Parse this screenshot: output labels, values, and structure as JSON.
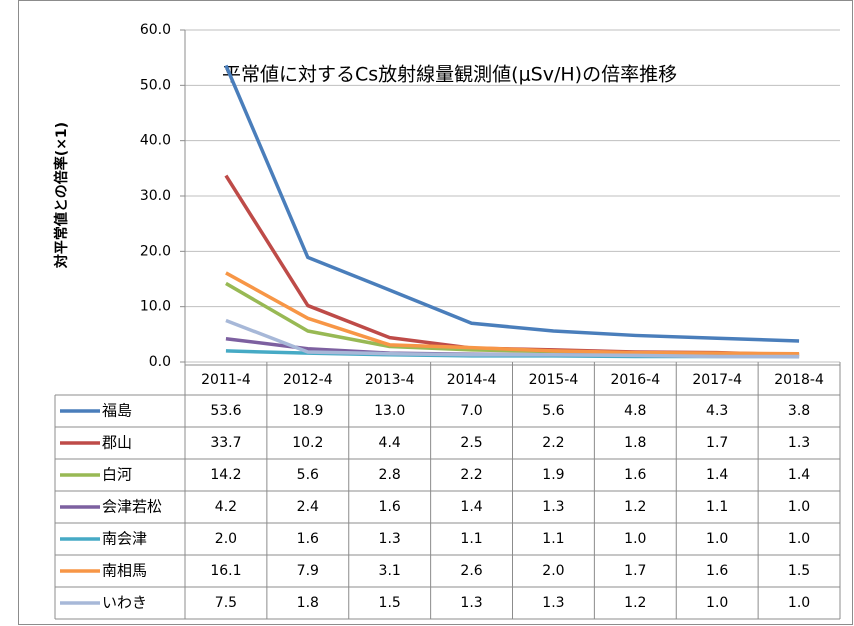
{
  "chart_data": {
    "type": "line",
    "title": "平常値に対するCs放射線量観測値(μSv/H)の倍率推移",
    "y_label": "対平常値との倍率(×1)",
    "categories": [
      "2011-4",
      "2012-4",
      "2013-4",
      "2014-4",
      "2015-4",
      "2016-4",
      "2017-4",
      "2018-4"
    ],
    "ylim": [
      0,
      60
    ],
    "yticks": [
      {
        "value": 0,
        "label": "0.0"
      },
      {
        "value": 10,
        "label": "10.0"
      },
      {
        "value": 20,
        "label": "20.0"
      },
      {
        "value": 30,
        "label": "30.0"
      },
      {
        "value": 40,
        "label": "40.0"
      },
      {
        "value": 50,
        "label": "50.0"
      },
      {
        "value": 60,
        "label": "60.0"
      }
    ],
    "grid": true,
    "series": [
      {
        "name": "福島",
        "color": "#4a7ebb",
        "values": [
          53.6,
          18.9,
          13.0,
          7.0,
          5.6,
          4.8,
          4.3,
          3.8
        ],
        "value_labels": [
          "53.6",
          "18.9",
          "13.0",
          "7.0",
          "5.6",
          "4.8",
          "4.3",
          "3.8"
        ]
      },
      {
        "name": "郡山",
        "color": "#be4b48",
        "values": [
          33.7,
          10.2,
          4.4,
          2.5,
          2.2,
          1.8,
          1.7,
          1.3
        ],
        "value_labels": [
          "33.7",
          "10.2",
          "4.4",
          "2.5",
          "2.2",
          "1.8",
          "1.7",
          "1.3"
        ]
      },
      {
        "name": "白河",
        "color": "#98b954",
        "values": [
          14.2,
          5.6,
          2.8,
          2.2,
          1.9,
          1.6,
          1.4,
          1.4
        ],
        "value_labels": [
          "14.2",
          "5.6",
          "2.8",
          "2.2",
          "1.9",
          "1.6",
          "1.4",
          "1.4"
        ]
      },
      {
        "name": "会津若松",
        "color": "#7d60a0",
        "values": [
          4.2,
          2.4,
          1.6,
          1.4,
          1.3,
          1.2,
          1.1,
          1.0
        ],
        "value_labels": [
          "4.2",
          "2.4",
          "1.6",
          "1.4",
          "1.3",
          "1.2",
          "1.1",
          "1.0"
        ]
      },
      {
        "name": "南会津",
        "color": "#46aac5",
        "values": [
          2.0,
          1.6,
          1.3,
          1.1,
          1.1,
          1.0,
          1.0,
          1.0
        ],
        "value_labels": [
          "2.0",
          "1.6",
          "1.3",
          "1.1",
          "1.1",
          "1.0",
          "1.0",
          "1.0"
        ]
      },
      {
        "name": "南相馬",
        "color": "#f79646",
        "values": [
          16.1,
          7.9,
          3.1,
          2.6,
          2.0,
          1.7,
          1.6,
          1.5
        ],
        "value_labels": [
          "16.1",
          "7.9",
          "3.1",
          "2.6",
          "2.0",
          "1.7",
          "1.6",
          "1.5"
        ]
      },
      {
        "name": "いわき",
        "color": "#a7b8d8",
        "values": [
          7.5,
          1.8,
          1.5,
          1.3,
          1.3,
          1.2,
          1.0,
          1.0
        ],
        "value_labels": [
          "7.5",
          "1.8",
          "1.5",
          "1.3",
          "1.3",
          "1.2",
          "1.0",
          "1.0"
        ]
      }
    ]
  }
}
